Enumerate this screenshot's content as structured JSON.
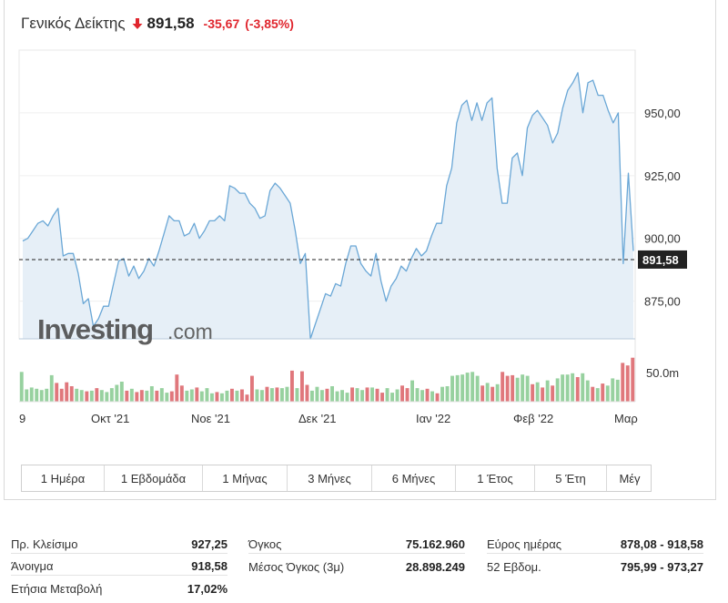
{
  "header": {
    "title": "Γενικός Δείκτης",
    "last": "891,58",
    "change": "-35,67",
    "change_pct": "(-3,85%)",
    "down_color": "#e0262e"
  },
  "watermark": {
    "brand": "Investing",
    "suffix": ".com"
  },
  "chart_data": {
    "type": "line",
    "price_axis": {
      "min": 860,
      "max": 975,
      "ticks": [
        950,
        925,
        900,
        875
      ],
      "tick_labels": [
        "950,00",
        "925,00",
        "900,00",
        "875,00"
      ]
    },
    "last_price": 891.58,
    "last_price_label": "891,58",
    "x_labels": [
      "9",
      "Οκτ '21",
      "Νοε '21",
      "Δεκ '21",
      "Ιαν '22",
      "Φεβ '22",
      "Μαρ"
    ],
    "series": [
      {
        "values": [
          899,
          900,
          903,
          906,
          907,
          905,
          909,
          912,
          893,
          894,
          894,
          886,
          874,
          876,
          865,
          868,
          873,
          873,
          882,
          891,
          892,
          885,
          889,
          884,
          887,
          892,
          889,
          895,
          902,
          909,
          907,
          907,
          901,
          902,
          906,
          900,
          903,
          907,
          907,
          909,
          907,
          921,
          920,
          918,
          918,
          914,
          912,
          908,
          909,
          919,
          922,
          920,
          917,
          914,
          903,
          890,
          894,
          860,
          866,
          872,
          878,
          877,
          882,
          881,
          890,
          897,
          897,
          890,
          887,
          885,
          894,
          883,
          875,
          881,
          884,
          889,
          887,
          892,
          896,
          893,
          895,
          901,
          906,
          906,
          921,
          928,
          946,
          953,
          955,
          947,
          954,
          947,
          954,
          956,
          928,
          914,
          914,
          932,
          934,
          925,
          944,
          949,
          951,
          948,
          945,
          938,
          942,
          952,
          959,
          962,
          966,
          950,
          962,
          963,
          957,
          957,
          951,
          946,
          950,
          890,
          926,
          895
        ]
      }
    ],
    "volume_axis": {
      "tick_label": "50.0m"
    },
    "volume": [
      [
        0.46,
        "g"
      ],
      [
        0.19,
        "g"
      ],
      [
        0.22,
        "g"
      ],
      [
        0.2,
        "g"
      ],
      [
        0.18,
        "g"
      ],
      [
        0.2,
        "g"
      ],
      [
        0.41,
        "g"
      ],
      [
        0.29,
        "r"
      ],
      [
        0.2,
        "r"
      ],
      [
        0.3,
        "r"
      ],
      [
        0.24,
        "r"
      ],
      [
        0.2,
        "g"
      ],
      [
        0.18,
        "g"
      ],
      [
        0.16,
        "r"
      ],
      [
        0.17,
        "g"
      ],
      [
        0.21,
        "r"
      ],
      [
        0.18,
        "g"
      ],
      [
        0.15,
        "g"
      ],
      [
        0.21,
        "g"
      ],
      [
        0.26,
        "g"
      ],
      [
        0.31,
        "g"
      ],
      [
        0.17,
        "r"
      ],
      [
        0.2,
        "g"
      ],
      [
        0.15,
        "r"
      ],
      [
        0.18,
        "r"
      ],
      [
        0.17,
        "g"
      ],
      [
        0.24,
        "g"
      ],
      [
        0.17,
        "r"
      ],
      [
        0.21,
        "g"
      ],
      [
        0.14,
        "g"
      ],
      [
        0.16,
        "r"
      ],
      [
        0.42,
        "r"
      ],
      [
        0.25,
        "r"
      ],
      [
        0.17,
        "g"
      ],
      [
        0.19,
        "g"
      ],
      [
        0.22,
        "r"
      ],
      [
        0.16,
        "g"
      ],
      [
        0.21,
        "g"
      ],
      [
        0.13,
        "g"
      ],
      [
        0.15,
        "r"
      ],
      [
        0.13,
        "g"
      ],
      [
        0.17,
        "g"
      ],
      [
        0.2,
        "r"
      ],
      [
        0.17,
        "g"
      ],
      [
        0.19,
        "r"
      ],
      [
        0.11,
        "r"
      ],
      [
        0.4,
        "r"
      ],
      [
        0.19,
        "g"
      ],
      [
        0.18,
        "g"
      ],
      [
        0.23,
        "r"
      ],
      [
        0.21,
        "g"
      ],
      [
        0.22,
        "r"
      ],
      [
        0.21,
        "g"
      ],
      [
        0.23,
        "g"
      ],
      [
        0.48,
        "r"
      ],
      [
        0.21,
        "g"
      ],
      [
        0.47,
        "r"
      ],
      [
        0.26,
        "r"
      ],
      [
        0.17,
        "g"
      ],
      [
        0.23,
        "g"
      ],
      [
        0.18,
        "g"
      ],
      [
        0.2,
        "r"
      ],
      [
        0.24,
        "g"
      ],
      [
        0.16,
        "g"
      ],
      [
        0.18,
        "g"
      ],
      [
        0.14,
        "g"
      ],
      [
        0.22,
        "r"
      ],
      [
        0.21,
        "g"
      ],
      [
        0.18,
        "g"
      ],
      [
        0.22,
        "r"
      ],
      [
        0.22,
        "g"
      ],
      [
        0.2,
        "r"
      ],
      [
        0.14,
        "r"
      ],
      [
        0.21,
        "g"
      ],
      [
        0.14,
        "g"
      ],
      [
        0.19,
        "g"
      ],
      [
        0.25,
        "r"
      ],
      [
        0.21,
        "r"
      ],
      [
        0.33,
        "g"
      ],
      [
        0.21,
        "g"
      ],
      [
        0.18,
        "g"
      ],
      [
        0.2,
        "r"
      ],
      [
        0.16,
        "g"
      ],
      [
        0.13,
        "r"
      ],
      [
        0.23,
        "g"
      ],
      [
        0.24,
        "g"
      ],
      [
        0.4,
        "g"
      ],
      [
        0.41,
        "g"
      ],
      [
        0.42,
        "g"
      ],
      [
        0.45,
        "g"
      ],
      [
        0.46,
        "g"
      ],
      [
        0.4,
        "g"
      ],
      [
        0.25,
        "r"
      ],
      [
        0.29,
        "g"
      ],
      [
        0.23,
        "r"
      ],
      [
        0.27,
        "g"
      ],
      [
        0.46,
        "r"
      ],
      [
        0.4,
        "r"
      ],
      [
        0.41,
        "r"
      ],
      [
        0.37,
        "g"
      ],
      [
        0.42,
        "g"
      ],
      [
        0.4,
        "g"
      ],
      [
        0.27,
        "r"
      ],
      [
        0.3,
        "g"
      ],
      [
        0.22,
        "r"
      ],
      [
        0.33,
        "g"
      ],
      [
        0.25,
        "r"
      ],
      [
        0.36,
        "g"
      ],
      [
        0.42,
        "g"
      ],
      [
        0.42,
        "g"
      ],
      [
        0.44,
        "g"
      ],
      [
        0.38,
        "r"
      ],
      [
        0.44,
        "g"
      ],
      [
        0.33,
        "g"
      ],
      [
        0.23,
        "r"
      ],
      [
        0.21,
        "g"
      ],
      [
        0.28,
        "r"
      ],
      [
        0.25,
        "g"
      ],
      [
        0.36,
        "g"
      ],
      [
        0.34,
        "g"
      ],
      [
        0.6,
        "r"
      ],
      [
        0.56,
        "r"
      ],
      [
        0.68,
        "r"
      ]
    ],
    "colors": {
      "line": "#6aa7d6",
      "area": "#e6eff7",
      "vol_up": "#97d19f",
      "vol_down": "#e0777c"
    }
  },
  "tabs": [
    "1 Ημέρα",
    "1 Εβδομάδα",
    "1 Μήνας",
    "3 Μήνες",
    "6 Μήνες",
    "1 Έτος",
    "5 Έτη",
    "Μέγ"
  ],
  "stats": {
    "prev_close": {
      "label": "Πρ. Κλείσιμο",
      "value": "927,25"
    },
    "open": {
      "label": "Άνοιγμα",
      "value": "918,58"
    },
    "ytd_change": {
      "label": "Ετήσια Μεταβολή",
      "value": "17,02%"
    },
    "volume": {
      "label": "Όγκος",
      "value": "75.162.960"
    },
    "avg_volume": {
      "label": "Μέσος Όγκος (3μ)",
      "value": "28.898.249"
    },
    "day_range": {
      "label": "Εύρος ημέρας",
      "value": "878,08 - 918,58"
    },
    "week52_range": {
      "label": "52 Εβδομ.",
      "value": "795,99 - 973,27"
    }
  }
}
